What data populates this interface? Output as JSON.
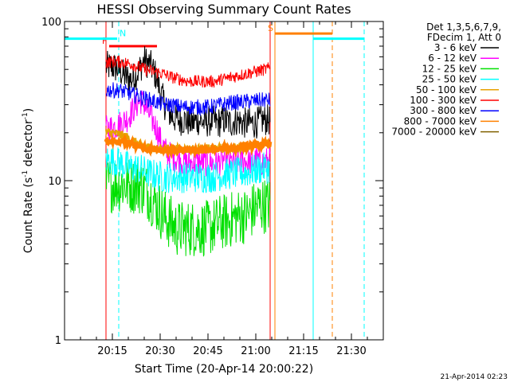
{
  "chart_data": {
    "type": "line",
    "title": "HESSI Observing Summary Count Rates",
    "xlabel": "Start Time (20-Apr-14 20:00:22)",
    "ylabel": "Count Rate (s",
    "ylabel_sup1": "-1",
    "ylabel_mid": " detector",
    "ylabel_sup2": "-1",
    "ylabel_end": ")",
    "y_scale": "log",
    "ylim": [
      1,
      100
    ],
    "xlim_minutes": [
      0,
      100
    ],
    "x_ticks": [
      {
        "label": "20:15",
        "minute": 15
      },
      {
        "label": "20:30",
        "minute": 30
      },
      {
        "label": "20:45",
        "minute": 45
      },
      {
        "label": "21:00",
        "minute": 60
      },
      {
        "label": "21:15",
        "minute": 75
      },
      {
        "label": "21:30",
        "minute": 90
      }
    ],
    "y_ticks": [
      {
        "label": "1",
        "value": 1
      },
      {
        "label": "10",
        "value": 10
      },
      {
        "label": "100",
        "value": 100
      }
    ],
    "legend": {
      "position": "top-right",
      "header": [
        "Det 1,3,5,6,7,9,",
        "FDecim 1, Att 0"
      ]
    },
    "observing_window_minutes": [
      13,
      64.5
    ],
    "series": [
      {
        "name": "3 - 6 keV",
        "color": "#000000",
        "points": [
          [
            13,
            52
          ],
          [
            15,
            52
          ],
          [
            17,
            50
          ],
          [
            19,
            45
          ],
          [
            21,
            43
          ],
          [
            23,
            48
          ],
          [
            25,
            57
          ],
          [
            27,
            53
          ],
          [
            29,
            44
          ],
          [
            30,
            36
          ],
          [
            32,
            28
          ],
          [
            34,
            25
          ],
          [
            36,
            24
          ],
          [
            38,
            24
          ],
          [
            40,
            23
          ],
          [
            42,
            24
          ],
          [
            44,
            23
          ],
          [
            46,
            24
          ],
          [
            48,
            23
          ],
          [
            50,
            24
          ],
          [
            52,
            23
          ],
          [
            54,
            24
          ],
          [
            56,
            23
          ],
          [
            58,
            23
          ],
          [
            60,
            23
          ],
          [
            62,
            24
          ],
          [
            64.5,
            24
          ]
        ]
      },
      {
        "name": "6 - 12 keV",
        "color": "#ff00ff",
        "points": [
          [
            13,
            21
          ],
          [
            16,
            22
          ],
          [
            18,
            23
          ],
          [
            20,
            25
          ],
          [
            22,
            29
          ],
          [
            24,
            32
          ],
          [
            25,
            30
          ],
          [
            27,
            25
          ],
          [
            29,
            21
          ],
          [
            30,
            18
          ],
          [
            32,
            15
          ],
          [
            34,
            14
          ],
          [
            36,
            13.5
          ],
          [
            38,
            13
          ],
          [
            40,
            13
          ],
          [
            42,
            13
          ],
          [
            44,
            13
          ],
          [
            46,
            13
          ],
          [
            48,
            13
          ],
          [
            50,
            13.5
          ],
          [
            52,
            13
          ],
          [
            54,
            13
          ],
          [
            56,
            13.5
          ],
          [
            58,
            13
          ],
          [
            60,
            13.5
          ],
          [
            62,
            13
          ],
          [
            64.5,
            13.5
          ]
        ]
      },
      {
        "name": "12 - 25 keV",
        "color": "#00e000",
        "points": [
          [
            13,
            9.5
          ],
          [
            15,
            9.5
          ],
          [
            17,
            9.5
          ],
          [
            19,
            9.5
          ],
          [
            21,
            9.3
          ],
          [
            23,
            9.3
          ],
          [
            25,
            9
          ],
          [
            27,
            8
          ],
          [
            29,
            7
          ],
          [
            31,
            6
          ],
          [
            33,
            5.5
          ],
          [
            35,
            5
          ],
          [
            37,
            5
          ],
          [
            39,
            5
          ],
          [
            41,
            5
          ],
          [
            43,
            5
          ],
          [
            45,
            5
          ],
          [
            47,
            5.2
          ],
          [
            49,
            5.5
          ],
          [
            51,
            5.5
          ],
          [
            53,
            5.8
          ],
          [
            55,
            6
          ],
          [
            57,
            6
          ],
          [
            59,
            6.5
          ],
          [
            61,
            7
          ],
          [
            63,
            7
          ],
          [
            64.5,
            7
          ]
        ]
      },
      {
        "name": "25 - 50 keV",
        "color": "#00ffff",
        "points": [
          [
            13,
            13.5
          ],
          [
            15,
            13.5
          ],
          [
            17,
            13
          ],
          [
            19,
            12.5
          ],
          [
            21,
            12
          ],
          [
            23,
            12
          ],
          [
            25,
            11.5
          ],
          [
            27,
            11
          ],
          [
            29,
            10.8
          ],
          [
            31,
            10.5
          ],
          [
            33,
            10.5
          ],
          [
            35,
            10.5
          ],
          [
            37,
            10.5
          ],
          [
            39,
            10.5
          ],
          [
            41,
            10.5
          ],
          [
            43,
            10.5
          ],
          [
            45,
            10.5
          ],
          [
            47,
            10.6
          ],
          [
            49,
            10.8
          ],
          [
            51,
            11
          ],
          [
            53,
            11
          ],
          [
            55,
            11.2
          ],
          [
            57,
            11.2
          ],
          [
            59,
            11.5
          ],
          [
            61,
            11.8
          ],
          [
            63,
            12
          ],
          [
            64.5,
            12
          ]
        ]
      },
      {
        "name": "50 - 100 keV",
        "color": "#e8a000",
        "points": [
          [
            13,
            20
          ],
          [
            15,
            20
          ],
          [
            17,
            19.5
          ],
          [
            19,
            19
          ],
          [
            21,
            18
          ],
          [
            23,
            17
          ],
          [
            25,
            16.5
          ],
          [
            27,
            16
          ],
          [
            29,
            15.8
          ],
          [
            31,
            15.8
          ],
          [
            33,
            15.8
          ],
          [
            35,
            15.8
          ],
          [
            37,
            15.8
          ],
          [
            39,
            15.8
          ],
          [
            41,
            15.8
          ],
          [
            43,
            15.8
          ],
          [
            45,
            15.8
          ],
          [
            47,
            16
          ],
          [
            49,
            16
          ],
          [
            51,
            16
          ],
          [
            53,
            16
          ],
          [
            55,
            16.2
          ],
          [
            57,
            16.3
          ],
          [
            59,
            16.5
          ],
          [
            61,
            16.8
          ],
          [
            63,
            17
          ],
          [
            64.5,
            17
          ]
        ]
      },
      {
        "name": "100 - 300 keV",
        "color": "#ff0000",
        "points": [
          [
            13,
            55
          ],
          [
            15,
            56
          ],
          [
            17,
            56
          ],
          [
            19,
            55
          ],
          [
            21,
            54
          ],
          [
            23,
            52
          ],
          [
            25,
            50
          ],
          [
            27,
            49
          ],
          [
            29,
            48
          ],
          [
            31,
            47
          ],
          [
            33,
            45
          ],
          [
            35,
            44
          ],
          [
            37,
            43
          ],
          [
            39,
            42
          ],
          [
            41,
            42
          ],
          [
            43,
            42
          ],
          [
            45,
            42
          ],
          [
            47,
            42
          ],
          [
            49,
            43
          ],
          [
            51,
            44
          ],
          [
            53,
            45
          ],
          [
            55,
            46
          ],
          [
            57,
            47
          ],
          [
            59,
            48
          ],
          [
            61,
            49
          ],
          [
            63,
            50
          ],
          [
            64.5,
            51
          ]
        ]
      },
      {
        "name": "300 - 800 keV",
        "color": "#0000ff",
        "points": [
          [
            13,
            37
          ],
          [
            15,
            37
          ],
          [
            17,
            37
          ],
          [
            19,
            36
          ],
          [
            21,
            35
          ],
          [
            23,
            34
          ],
          [
            25,
            33
          ],
          [
            27,
            32
          ],
          [
            29,
            31
          ],
          [
            31,
            30
          ],
          [
            33,
            30
          ],
          [
            35,
            29.5
          ],
          [
            37,
            29
          ],
          [
            39,
            29
          ],
          [
            41,
            29
          ],
          [
            43,
            29
          ],
          [
            45,
            29
          ],
          [
            47,
            29.5
          ],
          [
            49,
            30
          ],
          [
            51,
            30.5
          ],
          [
            53,
            31
          ],
          [
            55,
            31
          ],
          [
            57,
            31.5
          ],
          [
            59,
            31.5
          ],
          [
            61,
            32
          ],
          [
            63,
            32
          ],
          [
            64.5,
            32
          ]
        ]
      },
      {
        "name": "800 - 7000 keV",
        "color": "#ff8000",
        "points": [
          [
            13,
            17.5
          ],
          [
            17,
            17.5
          ],
          [
            19,
            17.2
          ],
          [
            21,
            17
          ],
          [
            23,
            16.5
          ],
          [
            25,
            16
          ],
          [
            27,
            15.8
          ],
          [
            29,
            15.5
          ],
          [
            31,
            15.5
          ],
          [
            33,
            15.5
          ],
          [
            35,
            15.5
          ],
          [
            37,
            15.5
          ],
          [
            39,
            15.5
          ],
          [
            41,
            15.5
          ],
          [
            43,
            15.5
          ],
          [
            45,
            15.5
          ],
          [
            47,
            15.6
          ],
          [
            49,
            15.8
          ],
          [
            51,
            16
          ],
          [
            53,
            16
          ],
          [
            55,
            16.2
          ],
          [
            57,
            16.5
          ],
          [
            59,
            16.5
          ],
          [
            61,
            16.8
          ],
          [
            63,
            17
          ],
          [
            64.5,
            17
          ]
        ]
      },
      {
        "name": "7000 - 20000 keV",
        "color": "#806000",
        "points": []
      }
    ],
    "flags": [
      {
        "letter": "F",
        "color": "#ff0000",
        "start": 14,
        "end": 29,
        "y_value": 70
      },
      {
        "letter": "N",
        "color": "#00ffff",
        "start": 0,
        "end": 16.5,
        "y_value": 78
      },
      {
        "letter": "S",
        "color": "#ff8000",
        "start": 66,
        "end": 84,
        "y_value": 84
      },
      {
        "letter": "",
        "color": "#00ffff",
        "start": 78,
        "end": 94,
        "y_value": 78
      }
    ],
    "vertical_lines": [
      {
        "minute": 13,
        "color": "#ff0000",
        "style": "solid"
      },
      {
        "minute": 17,
        "color": "#00ffff",
        "style": "dashed"
      },
      {
        "minute": 64.5,
        "color": "#ff0000",
        "style": "solid"
      },
      {
        "minute": 66,
        "color": "#ff8000",
        "style": "solid"
      },
      {
        "minute": 78,
        "color": "#00ffff",
        "style": "solid"
      },
      {
        "minute": 84,
        "color": "#ff8000",
        "style": "dashed"
      },
      {
        "minute": 94,
        "color": "#00ffff",
        "style": "dashed"
      }
    ]
  },
  "footer": {
    "timestamp": "21-Apr-2014 02:23"
  }
}
